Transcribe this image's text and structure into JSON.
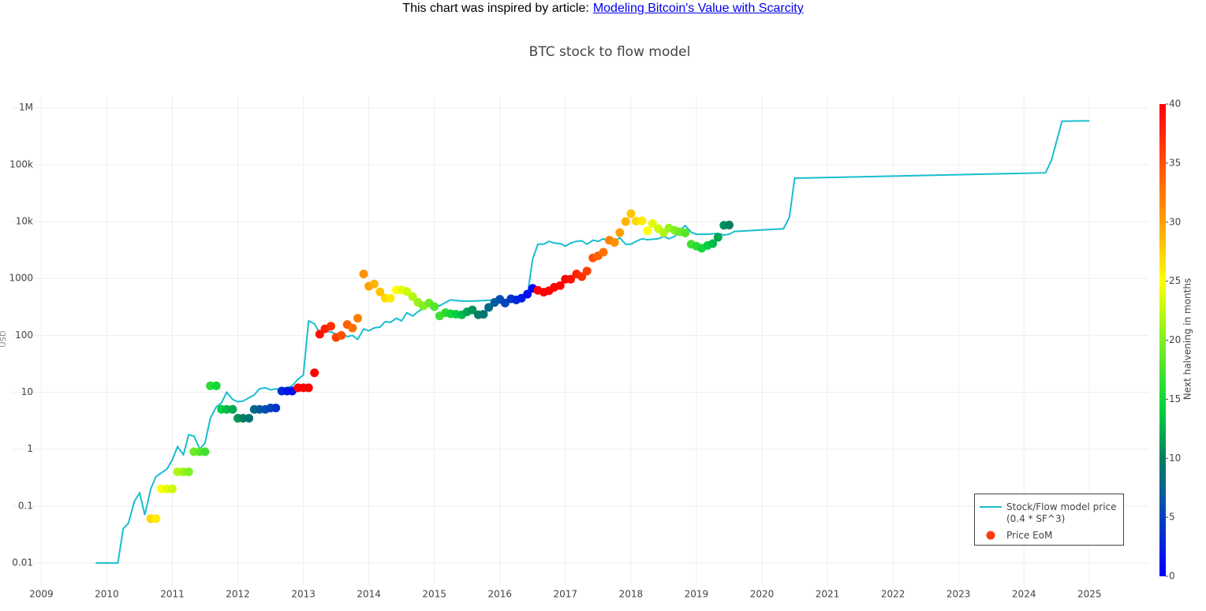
{
  "header": {
    "text": "This chart was inspired by article:",
    "link": "Modeling Bitcoin's Value with Scarcity"
  },
  "chart_data": {
    "type": "line",
    "title": "BTC stock to flow model",
    "y_label": "USD",
    "log_y": true,
    "grid": true,
    "legend": "bottom-right",
    "xlim": [
      2008.55,
      2025.9
    ],
    "xticks": [
      2009,
      2010,
      2011,
      2012,
      2013,
      2014,
      2015,
      2016,
      2017,
      2018,
      2019,
      2020,
      2021,
      2022,
      2023,
      2024,
      2025
    ],
    "ylim": [
      0.0041,
      1600000
    ],
    "yticks": [
      0.01,
      0.1,
      1,
      10,
      100,
      1000,
      {
        "value": 10000,
        "label": "10k"
      },
      {
        "value": 100000,
        "label": "100k"
      },
      {
        "value": 1000000,
        "label": "1M"
      }
    ],
    "colorscale": [
      [
        0,
        "#0000ff"
      ],
      [
        0.15,
        "#0050b0"
      ],
      [
        0.25,
        "#008060"
      ],
      [
        0.35,
        "#00d040"
      ],
      [
        0.5,
        "#80f020"
      ],
      [
        0.625,
        "#ffff00"
      ],
      [
        0.75,
        "#ffa000"
      ],
      [
        1,
        "#ff0000"
      ]
    ],
    "colorbar": {
      "title": "Next halvening in months",
      "lim": [
        0,
        40
      ],
      "ticks": [
        0,
        5,
        10,
        15,
        20,
        25,
        30,
        35,
        40
      ]
    },
    "series": [
      {
        "name": "Stock/Flow model price (0.4 * SF^3)",
        "type": "line",
        "color": "#17becf",
        "x": [
          2009.83,
          2010.17,
          2010.25,
          2010.33,
          2010.42,
          2010.5,
          2010.58,
          2010.67,
          2010.75,
          2010.92,
          2011.0,
          2011.08,
          2011.17,
          2011.25,
          2011.33,
          2011.42,
          2011.5,
          2011.58,
          2011.67,
          2011.75,
          2011.83,
          2011.92,
          2012.0,
          2012.08,
          2012.17,
          2012.25,
          2012.33,
          2012.42,
          2012.5,
          2012.58,
          2012.67,
          2012.75,
          2012.83,
          2012.92,
          2013.0,
          2013.08,
          2013.17,
          2013.25,
          2013.33,
          2013.42,
          2013.5,
          2013.58,
          2013.67,
          2013.75,
          2013.83,
          2013.92,
          2014.0,
          2014.08,
          2014.17,
          2014.25,
          2014.33,
          2014.42,
          2014.5,
          2014.58,
          2014.67,
          2014.75,
          2014.83,
          2014.92,
          2015.0,
          2015.08,
          2015.17,
          2015.25,
          2015.42,
          2015.58,
          2015.75,
          2015.92,
          2016.0,
          2016.17,
          2016.33,
          2016.42,
          2016.5,
          2016.58,
          2016.67,
          2016.75,
          2016.83,
          2016.92,
          2017.0,
          2017.08,
          2017.17,
          2017.25,
          2017.33,
          2017.42,
          2017.5,
          2017.58,
          2017.67,
          2017.75,
          2017.83,
          2017.92,
          2018.0,
          2018.08,
          2018.17,
          2018.25,
          2018.42,
          2018.5,
          2018.58,
          2018.67,
          2018.75,
          2018.83,
          2018.92,
          2019.0,
          2019.17,
          2019.33,
          2019.42,
          2019.5,
          2019.58,
          2020.33,
          2020.42,
          2020.5,
          2024.33,
          2024.42,
          2024.58,
          2025.0
        ],
        "values": [
          0.01,
          0.01,
          0.04,
          0.05,
          0.12,
          0.17,
          0.07,
          0.2,
          0.33,
          0.45,
          0.65,
          1.1,
          0.8,
          1.8,
          1.7,
          1.0,
          1.3,
          3.5,
          5.5,
          6.5,
          10,
          7.5,
          6.8,
          7,
          8,
          9,
          11.5,
          12,
          11,
          11.5,
          11,
          12,
          13,
          17,
          20,
          180,
          160,
          110,
          120,
          115,
          105,
          110,
          95,
          100,
          85,
          130,
          120,
          135,
          140,
          175,
          170,
          200,
          180,
          250,
          220,
          260,
          300,
          330,
          350,
          330,
          380,
          420,
          400,
          400,
          410,
          420,
          380,
          420,
          470,
          500,
          2200,
          4000,
          4000,
          4500,
          4200,
          4100,
          3700,
          4200,
          4500,
          4600,
          4000,
          4700,
          4500,
          5000,
          4400,
          4500,
          5200,
          4000,
          4000,
          4500,
          5000,
          4800,
          5000,
          5500,
          5000,
          5500,
          7000,
          8500,
          6500,
          6000,
          6000,
          6200,
          5800,
          6000,
          6700,
          7500,
          12000,
          58000,
          72000,
          120000,
          580000,
          590000
        ]
      },
      {
        "name": "Price EoM",
        "type": "scatter",
        "color": "#ff3b10",
        "x": [
          2010.67,
          2010.75,
          2010.83,
          2010.92,
          2011.0,
          2011.08,
          2011.17,
          2011.25,
          2011.33,
          2011.42,
          2011.5,
          2011.58,
          2011.67,
          2011.75,
          2011.83,
          2011.92,
          2012.0,
          2012.08,
          2012.17,
          2012.25,
          2012.33,
          2012.42,
          2012.5,
          2012.58,
          2012.67,
          2012.75,
          2012.83,
          2012.92,
          2013.0,
          2013.08,
          2013.17,
          2013.25,
          2013.33,
          2013.42,
          2013.5,
          2013.58,
          2013.67,
          2013.75,
          2013.83,
          2013.92,
          2014.0,
          2014.08,
          2014.17,
          2014.25,
          2014.33,
          2014.42,
          2014.5,
          2014.58,
          2014.67,
          2014.75,
          2014.83,
          2014.92,
          2015.0,
          2015.08,
          2015.17,
          2015.25,
          2015.33,
          2015.42,
          2015.5,
          2015.58,
          2015.67,
          2015.75,
          2015.83,
          2015.92,
          2016.0,
          2016.08,
          2016.17,
          2016.25,
          2016.33,
          2016.42,
          2016.5,
          2016.58,
          2016.67,
          2016.75,
          2016.83,
          2016.92,
          2017.0,
          2017.08,
          2017.17,
          2017.25,
          2017.33,
          2017.42,
          2017.5,
          2017.58,
          2017.67,
          2017.75,
          2017.83,
          2017.92,
          2018.0,
          2018.08,
          2018.17,
          2018.25,
          2018.33,
          2018.42,
          2018.5,
          2018.58,
          2018.67,
          2018.75,
          2018.83,
          2018.92,
          2019.0,
          2019.08,
          2019.17,
          2019.25,
          2019.33,
          2019.42,
          2019.5
        ],
        "values": [
          0.06,
          0.06,
          0.2,
          0.2,
          0.2,
          0.4,
          0.4,
          0.4,
          0.9,
          0.9,
          0.9,
          13,
          13,
          5,
          5,
          5,
          3.5,
          3.5,
          3.5,
          5,
          5,
          5,
          5.3,
          5.3,
          10.5,
          10.5,
          10.5,
          12,
          12,
          12,
          22,
          105,
          130,
          145,
          92,
          100,
          155,
          135,
          200,
          1200,
          730,
          800,
          580,
          450,
          450,
          630,
          630,
          590,
          480,
          380,
          330,
          370,
          320,
          220,
          250,
          240,
          235,
          230,
          260,
          280,
          230,
          235,
          310,
          380,
          430,
          370,
          440,
          420,
          450,
          530,
          670,
          620,
          575,
          610,
          700,
          750,
          970,
          970,
          1200,
          1080,
          1350,
          2300,
          2500,
          2900,
          4700,
          4300,
          6400,
          10000,
          13800,
          10200,
          10300,
          6900,
          9200,
          7500,
          6400,
          7700,
          7000,
          6600,
          6300,
          4000,
          3700,
          3400,
          3800,
          4100,
          5300,
          8600,
          8700
        ],
        "months": [
          27,
          26,
          25,
          24,
          23,
          22,
          21,
          20,
          19,
          18,
          17,
          16,
          15,
          14,
          13,
          12,
          11,
          10,
          9,
          8,
          7,
          6,
          5,
          4,
          3,
          2,
          1,
          43,
          42,
          41,
          40,
          39,
          38,
          37,
          36,
          35,
          34,
          33,
          32,
          31,
          30,
          29,
          28,
          27,
          26,
          25,
          24,
          23,
          22,
          21,
          20,
          19,
          18,
          17,
          16,
          15,
          14,
          13,
          12,
          11,
          10,
          9,
          8,
          7,
          6,
          5,
          4,
          3,
          2,
          1,
          0,
          45,
          44,
          43,
          42,
          41,
          40,
          39,
          38,
          37,
          36,
          35,
          34,
          33,
          32,
          31,
          30,
          29,
          28,
          27,
          26,
          25,
          24,
          23,
          22,
          21,
          20,
          19,
          18,
          17,
          16,
          15,
          14,
          13,
          12,
          11,
          10
        ]
      }
    ]
  }
}
